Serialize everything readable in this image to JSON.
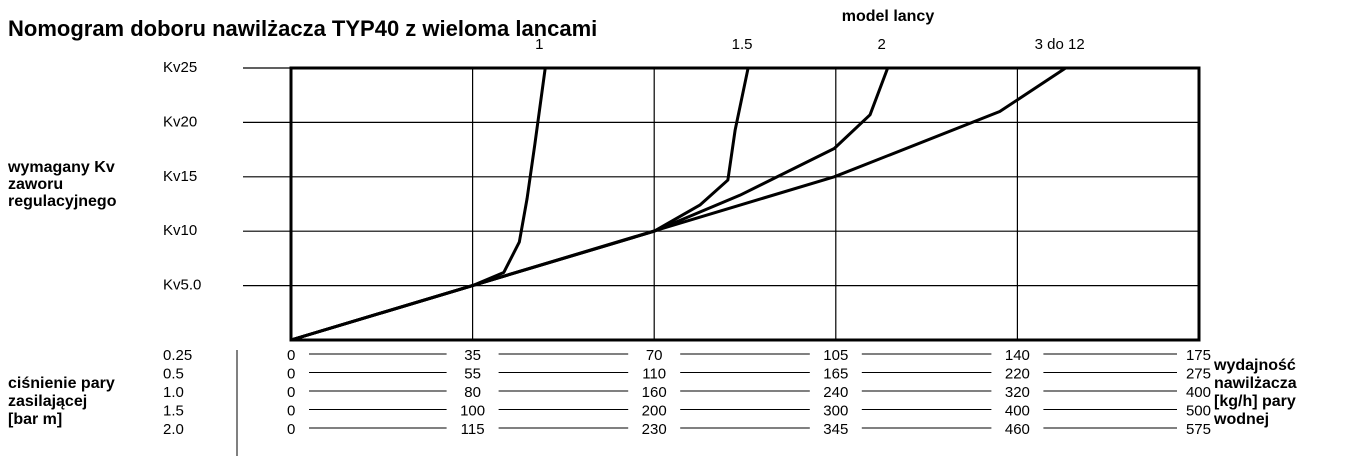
{
  "chart_data": {
    "type": "line",
    "title": "Nomogram doboru nawilżacza TYP40 z wieloma lancami",
    "legend_title": "model lancy",
    "ylabel": [
      "wymagany Kv",
      "zaworu",
      "regulacyjnego"
    ],
    "xlim": [
      0,
      175
    ],
    "xticks": [
      0,
      35,
      70,
      105,
      140,
      175
    ],
    "ylim": [
      0,
      25
    ],
    "yticks": [
      {
        "value": 5,
        "label": "Kv5.0"
      },
      {
        "value": 10,
        "label": "Kv10"
      },
      {
        "value": 15,
        "label": "Kv15"
      },
      {
        "value": 20,
        "label": "Kv20"
      },
      {
        "value": 25,
        "label": "Kv25"
      }
    ],
    "grid": true,
    "series": [
      {
        "name": "1",
        "color": "#000000",
        "x": [
          0,
          35,
          41,
          44,
          45.5,
          47,
          49
        ],
        "values": [
          0,
          5,
          6.2,
          9,
          13,
          18,
          25
        ]
      },
      {
        "name": "1.5",
        "color": "#000000",
        "x": [
          0,
          70,
          78.8,
          84.2,
          85.6,
          88.1
        ],
        "values": [
          0,
          10,
          12.4,
          14.7,
          19.3,
          25
        ]
      },
      {
        "name": "2",
        "color": "#000000",
        "x": [
          0,
          70,
          86.5,
          104.7,
          111.6,
          115
        ],
        "values": [
          0,
          10,
          13.3,
          17.6,
          20.7,
          25
        ]
      },
      {
        "name": "3 do 12",
        "color": "#000000",
        "x": [
          0,
          104.7,
          136.6,
          149.3
        ],
        "values": [
          0,
          15,
          21,
          25
        ]
      }
    ],
    "pressure_label": [
      "ciśnienie pary",
      "zasilającej",
      "[bar m]"
    ],
    "capacity_label": [
      "wydajność",
      "nawilżacza",
      "[kg/h] pary",
      "wodnej"
    ],
    "scales": [
      {
        "pressure": "0.25",
        "ticks": [
          0,
          35,
          70,
          105,
          140,
          175
        ]
      },
      {
        "pressure": "0.5",
        "ticks": [
          0,
          55,
          110,
          165,
          220,
          275
        ]
      },
      {
        "pressure": "1.0",
        "ticks": [
          0,
          80,
          160,
          240,
          320,
          400
        ]
      },
      {
        "pressure": "1.5",
        "ticks": [
          0,
          100,
          200,
          300,
          400,
          500
        ]
      },
      {
        "pressure": "2.0",
        "ticks": [
          0,
          115,
          230,
          345,
          460,
          575
        ]
      }
    ]
  }
}
